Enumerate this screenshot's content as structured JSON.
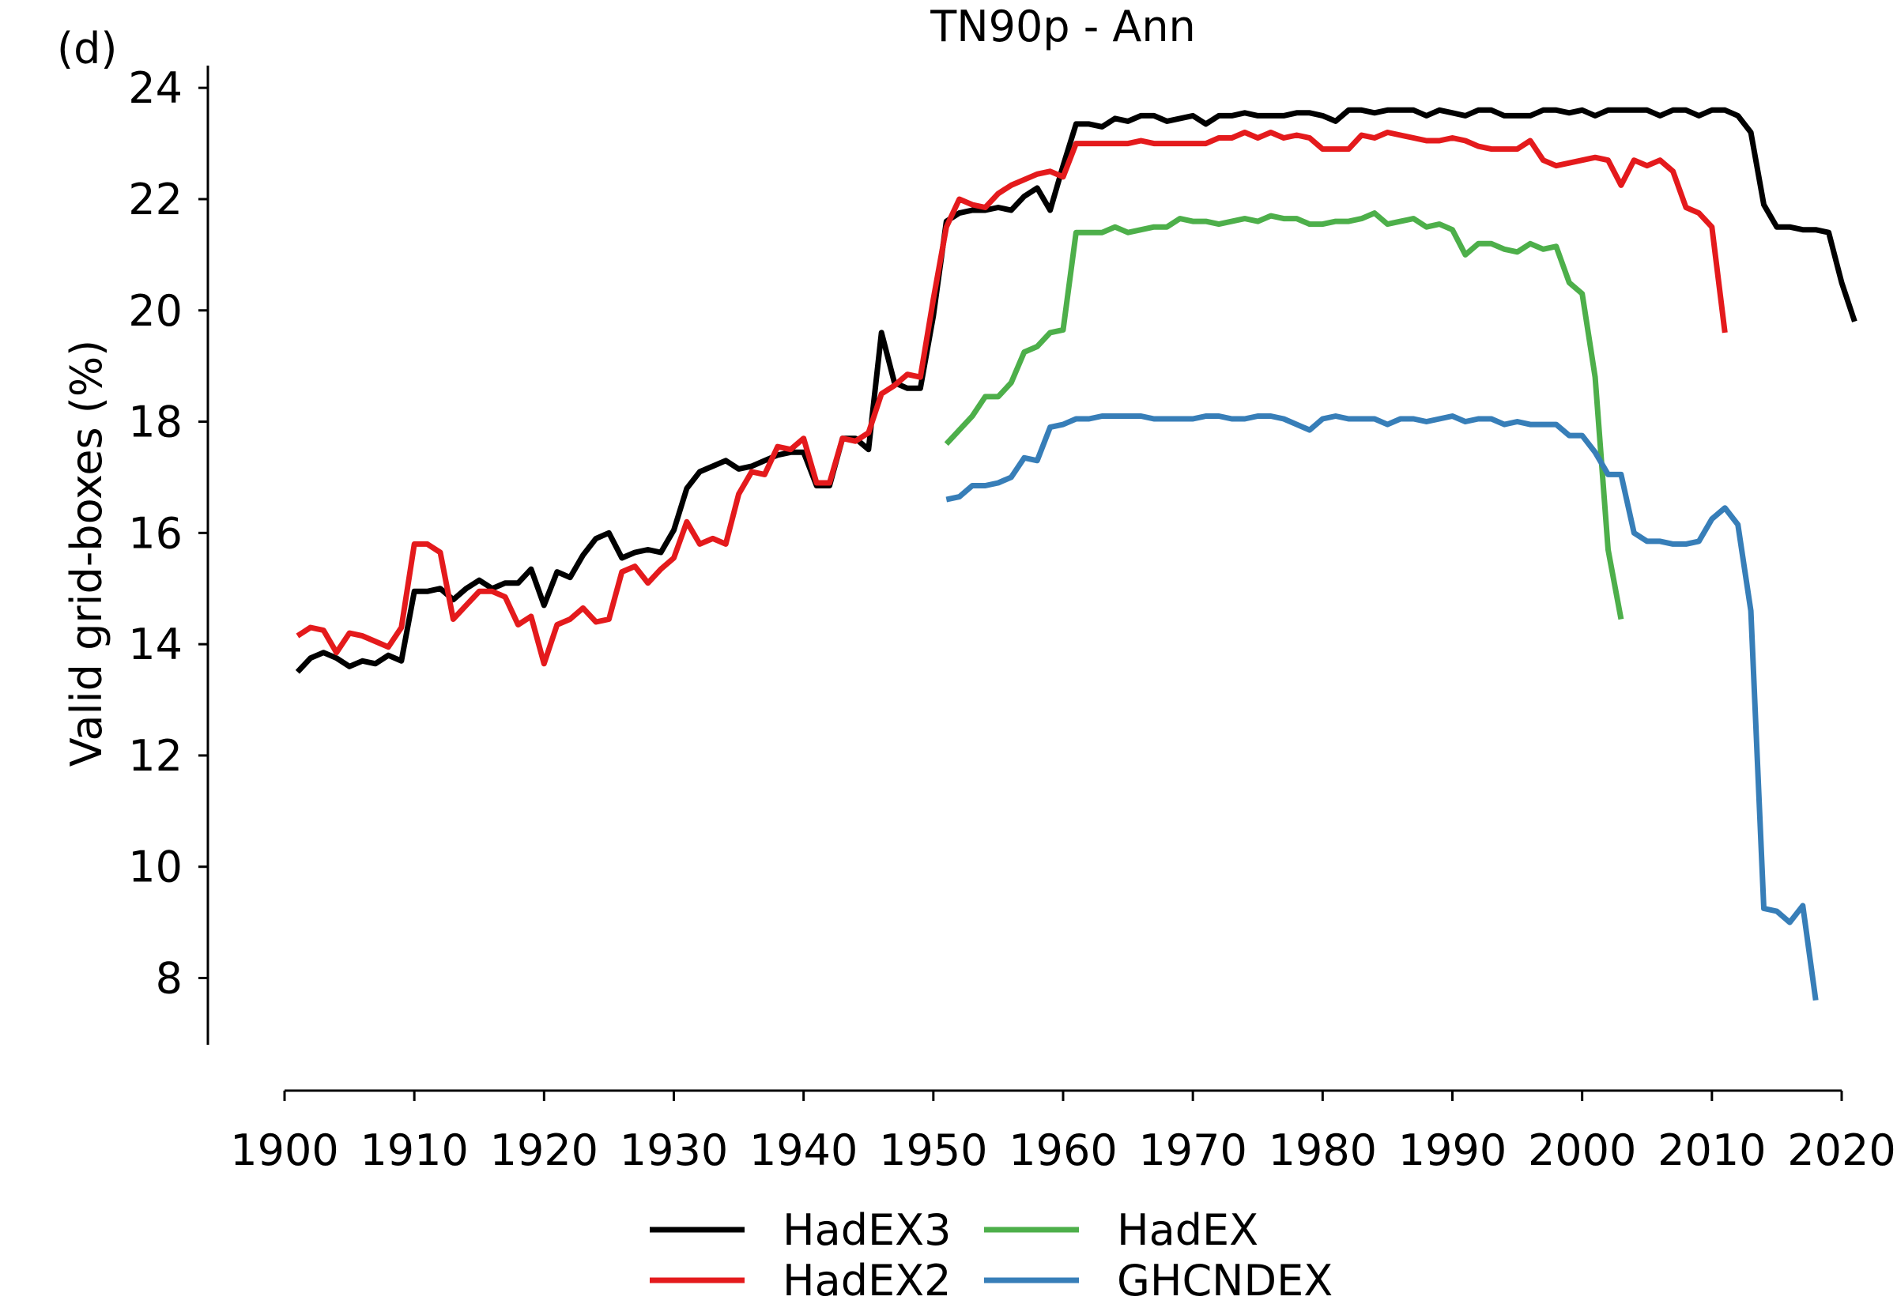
{
  "panel_label": "(d)",
  "chart_data": {
    "type": "line",
    "title": "TN90p - Ann",
    "xlabel": "",
    "ylabel": "Valid grid-boxes (%)",
    "xlim": [
      1900,
      2020
    ],
    "ylim": [
      6.8,
      24.4
    ],
    "xticks": [
      1900,
      1910,
      1920,
      1930,
      1940,
      1950,
      1960,
      1970,
      1980,
      1990,
      2000,
      2010,
      2020
    ],
    "yticks": [
      8,
      10,
      12,
      14,
      16,
      18,
      20,
      22,
      24
    ],
    "grid": false,
    "legend_position": "bottom",
    "series": [
      {
        "name": "HadEX3",
        "color": "#000000",
        "x_start": 1901,
        "values": [
          13.5,
          13.75,
          13.85,
          13.75,
          13.6,
          13.7,
          13.65,
          13.8,
          13.7,
          14.95,
          14.95,
          15.0,
          14.8,
          15.0,
          15.15,
          15.0,
          15.1,
          15.1,
          15.35,
          14.7,
          15.3,
          15.2,
          15.6,
          15.9,
          16.0,
          15.55,
          15.65,
          15.7,
          15.65,
          16.05,
          16.8,
          17.1,
          17.2,
          17.3,
          17.15,
          17.2,
          17.3,
          17.4,
          17.45,
          17.45,
          16.85,
          16.85,
          17.7,
          17.7,
          17.5,
          19.6,
          18.7,
          18.6,
          18.6,
          19.9,
          21.6,
          21.75,
          21.8,
          21.8,
          21.85,
          21.8,
          22.05,
          22.2,
          21.8,
          22.6,
          23.35,
          23.35,
          23.3,
          23.45,
          23.4,
          23.5,
          23.5,
          23.4,
          23.45,
          23.5,
          23.35,
          23.5,
          23.5,
          23.55,
          23.5,
          23.5,
          23.5,
          23.55,
          23.55,
          23.5,
          23.4,
          23.6,
          23.6,
          23.55,
          23.6,
          23.6,
          23.6,
          23.5,
          23.6,
          23.55,
          23.5,
          23.6,
          23.6,
          23.5,
          23.5,
          23.5,
          23.6,
          23.6,
          23.55,
          23.6,
          23.5,
          23.6,
          23.6,
          23.6,
          23.6,
          23.5,
          23.6,
          23.6,
          23.5,
          23.6,
          23.6,
          23.5,
          23.2,
          21.9,
          21.5,
          21.5,
          21.45,
          21.45,
          21.4,
          20.5,
          19.8
        ]
      },
      {
        "name": "HadEX2",
        "color": "#e41a1c",
        "x_start": 1901,
        "values": [
          14.15,
          14.3,
          14.25,
          13.85,
          14.2,
          14.15,
          14.05,
          13.95,
          14.3,
          15.8,
          15.8,
          15.65,
          14.45,
          14.7,
          14.95,
          14.95,
          14.85,
          14.35,
          14.5,
          13.65,
          14.35,
          14.45,
          14.65,
          14.4,
          14.45,
          15.3,
          15.4,
          15.1,
          15.35,
          15.55,
          16.2,
          15.8,
          15.9,
          15.8,
          16.7,
          17.1,
          17.05,
          17.55,
          17.5,
          17.7,
          16.9,
          16.9,
          17.7,
          17.65,
          17.8,
          18.5,
          18.65,
          18.85,
          18.8,
          20.2,
          21.5,
          22.0,
          21.9,
          21.85,
          22.1,
          22.25,
          22.35,
          22.45,
          22.5,
          22.4,
          23.0,
          23.0,
          23.0,
          23.0,
          23.0,
          23.05,
          23.0,
          23.0,
          23.0,
          23.0,
          23.0,
          23.1,
          23.1,
          23.2,
          23.1,
          23.2,
          23.1,
          23.15,
          23.1,
          22.9,
          22.9,
          22.9,
          23.15,
          23.1,
          23.2,
          23.15,
          23.1,
          23.05,
          23.05,
          23.1,
          23.05,
          22.95,
          22.9,
          22.9,
          22.9,
          23.05,
          22.7,
          22.6,
          22.65,
          22.7,
          22.75,
          22.7,
          22.25,
          22.7,
          22.6,
          22.7,
          22.5,
          21.85,
          21.75,
          21.5,
          19.6
        ]
      },
      {
        "name": "HadEX",
        "color": "#4daf4a",
        "x_start": 1951,
        "values": [
          17.6,
          17.85,
          18.1,
          18.45,
          18.45,
          18.7,
          19.25,
          19.35,
          19.6,
          19.65,
          21.4,
          21.4,
          21.4,
          21.5,
          21.4,
          21.45,
          21.5,
          21.5,
          21.65,
          21.6,
          21.6,
          21.55,
          21.6,
          21.65,
          21.6,
          21.7,
          21.65,
          21.65,
          21.55,
          21.55,
          21.6,
          21.6,
          21.65,
          21.75,
          21.55,
          21.6,
          21.65,
          21.5,
          21.55,
          21.45,
          21.0,
          21.2,
          21.2,
          21.1,
          21.05,
          21.2,
          21.1,
          21.15,
          20.5,
          20.3,
          18.8,
          15.7,
          14.45
        ]
      },
      {
        "name": "GHCNDEX",
        "color": "#377eb8",
        "x_start": 1951,
        "values": [
          16.6,
          16.65,
          16.85,
          16.85,
          16.9,
          17.0,
          17.35,
          17.3,
          17.9,
          17.95,
          18.05,
          18.05,
          18.1,
          18.1,
          18.1,
          18.1,
          18.05,
          18.05,
          18.05,
          18.05,
          18.1,
          18.1,
          18.05,
          18.05,
          18.1,
          18.1,
          18.05,
          17.95,
          17.85,
          18.05,
          18.1,
          18.05,
          18.05,
          18.05,
          17.95,
          18.05,
          18.05,
          18.0,
          18.05,
          18.1,
          18.0,
          18.05,
          18.05,
          17.95,
          18.0,
          17.95,
          17.95,
          17.95,
          17.75,
          17.75,
          17.45,
          17.05,
          17.05,
          16.0,
          15.85,
          15.85,
          15.8,
          15.8,
          15.85,
          16.25,
          16.45,
          16.15,
          14.6,
          9.25,
          9.2,
          9.0,
          9.3,
          7.6
        ]
      }
    ]
  }
}
